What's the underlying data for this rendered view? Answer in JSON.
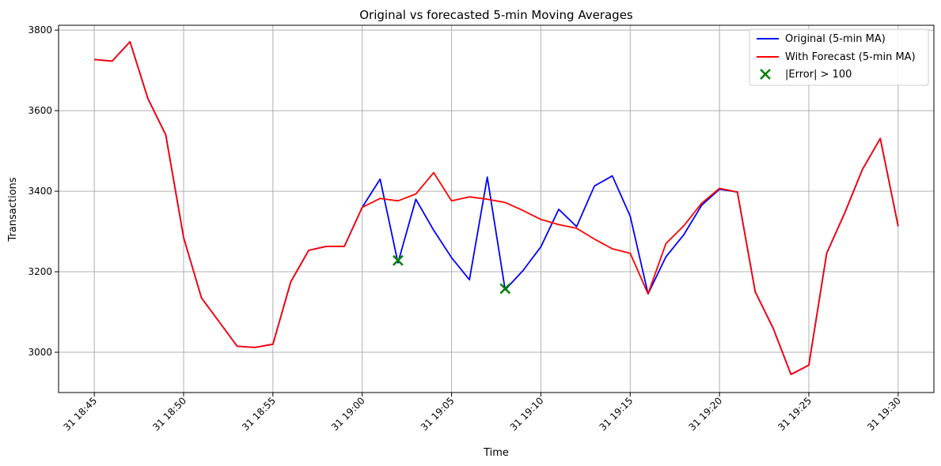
{
  "chart_data": {
    "type": "line",
    "title": "Original vs forecasted 5-min Moving Averages",
    "xlabel": "Time",
    "ylabel": "Transactions",
    "x": [
      "18:45",
      "18:46",
      "18:47",
      "18:48",
      "18:49",
      "18:50",
      "18:51",
      "18:52",
      "18:53",
      "18:54",
      "18:55",
      "18:56",
      "18:57",
      "18:58",
      "18:59",
      "19:00",
      "19:01",
      "19:02",
      "19:03",
      "19:04",
      "19:05",
      "19:06",
      "19:07",
      "19:08",
      "19:09",
      "19:10",
      "19:11",
      "19:12",
      "19:13",
      "19:14",
      "19:15",
      "19:16",
      "19:17",
      "19:18",
      "19:19",
      "19:20",
      "19:21",
      "19:22",
      "19:23",
      "19:24",
      "19:25",
      "19:26",
      "19:27",
      "19:28",
      "19:29",
      "19:30"
    ],
    "xticks": [
      "31 18:45",
      "31 18:50",
      "31 18:55",
      "31 19:00",
      "31 19:05",
      "31 19:10",
      "31 19:15",
      "31 19:20",
      "31 19:25",
      "31 19:30"
    ],
    "yticks": [
      3000,
      3200,
      3400,
      3600,
      3800
    ],
    "xlim": [
      "18:43",
      "19:32"
    ],
    "ylim": [
      2900,
      3812
    ],
    "grid": true,
    "legend_position": "top-right",
    "series": [
      {
        "name": "Original (5-min MA)",
        "color": "#0000ff",
        "values": [
          3727,
          3723,
          3771,
          3630,
          3540,
          3285,
          3135,
          3075,
          3015,
          3012,
          3020,
          3175,
          3253,
          3263,
          3263,
          3360,
          3430,
          3222,
          3380,
          3303,
          3235,
          3180,
          3435,
          3155,
          3203,
          3262,
          3355,
          3312,
          3413,
          3438,
          3338,
          3145,
          3237,
          3292,
          3365,
          3405,
          3398,
          3150,
          3060,
          2945,
          2968,
          3246,
          3345,
          3454,
          3531,
          3313
        ]
      },
      {
        "name": "With Forecast (5-min MA)",
        "color": "#ff0000",
        "values": [
          3727,
          3723,
          3771,
          3630,
          3540,
          3285,
          3135,
          3075,
          3015,
          3012,
          3020,
          3175,
          3253,
          3263,
          3263,
          3360,
          3382,
          3376,
          3393,
          3446,
          3376,
          3386,
          3380,
          3372,
          3352,
          3330,
          3317,
          3308,
          3281,
          3257,
          3246,
          3145,
          3270,
          3314,
          3370,
          3407,
          3398,
          3150,
          3060,
          2945,
          2968,
          3246,
          3345,
          3454,
          3531,
          3313
        ]
      }
    ],
    "markers": {
      "name": "|Error| > 100",
      "color": "#008000",
      "symbol": "x",
      "points": [
        {
          "x": "19:02",
          "y": 3228
        },
        {
          "x": "19:08",
          "y": 3158
        }
      ]
    }
  }
}
